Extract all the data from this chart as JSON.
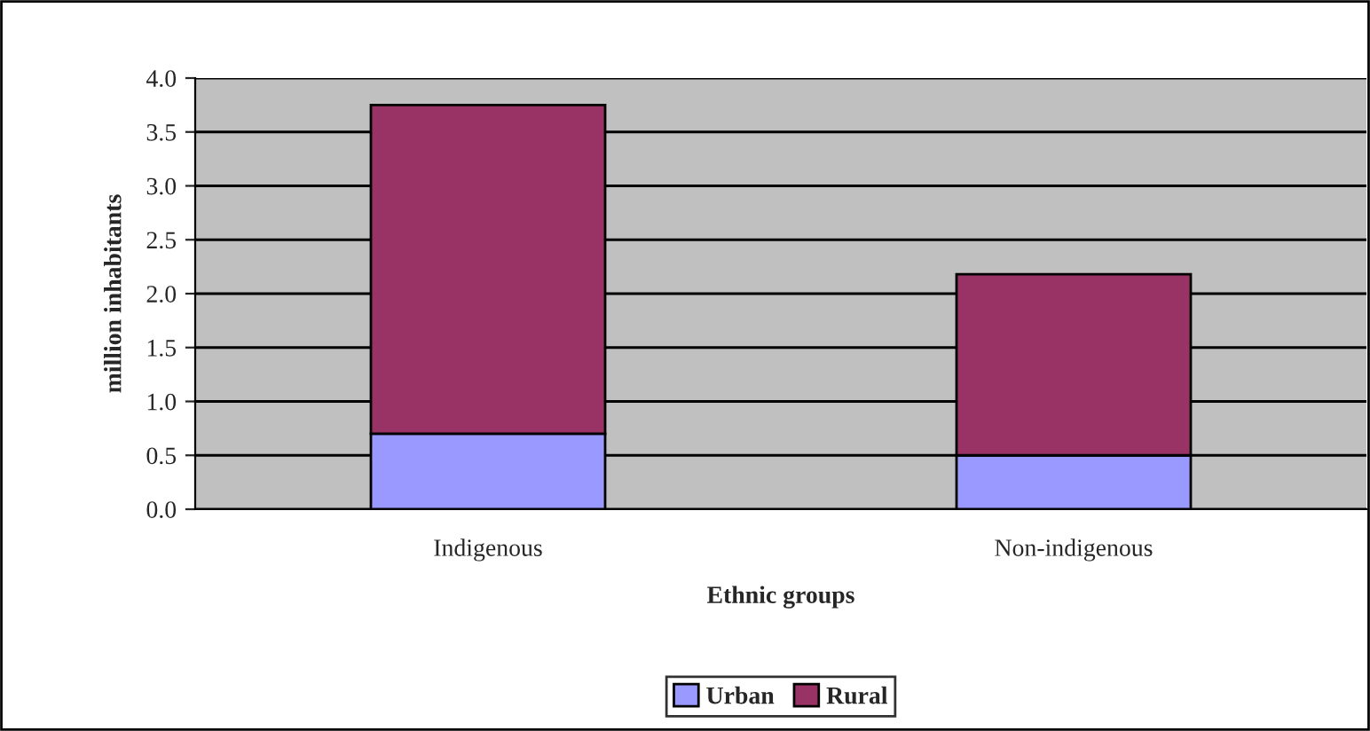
{
  "chart_data": {
    "type": "bar",
    "stacked": true,
    "xlabel": "Ethnic groups",
    "ylabel": "million inhabitants",
    "categories": [
      "Indigenous",
      "Non-indigenous"
    ],
    "series": [
      {
        "name": "Urban",
        "color": "#9999ff",
        "values": [
          0.7,
          0.5
        ]
      },
      {
        "name": "Rural",
        "color": "#993366",
        "values": [
          3.05,
          1.68
        ]
      }
    ],
    "ylim": [
      0,
      4.0
    ],
    "yticks": [
      {
        "value": 0,
        "label": "0.0"
      },
      {
        "value": 0.5,
        "label": "0.5"
      },
      {
        "value": 1.0,
        "label": "1.0"
      },
      {
        "value": 1.5,
        "label": "1.5"
      },
      {
        "value": 2.0,
        "label": "2.0"
      },
      {
        "value": 2.5,
        "label": "2.5"
      },
      {
        "value": 3.0,
        "label": "3.0"
      },
      {
        "value": 3.5,
        "label": "3.5"
      },
      {
        "value": 4.0,
        "label": "4.0"
      }
    ],
    "grid": "y",
    "legend": "bottom"
  }
}
